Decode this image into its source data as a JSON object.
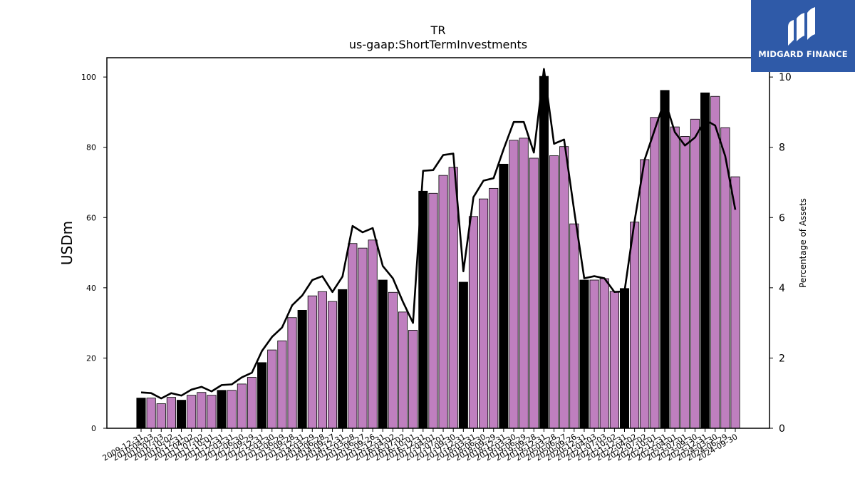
{
  "chart_data": {
    "type": "bar",
    "title": "TR",
    "subtitle": "us-gaap:ShortTermInvestments",
    "ylabel": "USDm",
    "y2label": "Percentage of Assets",
    "ylim": [
      0,
      105.5
    ],
    "y2lim": [
      0,
      10.55
    ],
    "yticks": [
      0,
      20,
      40,
      60,
      80,
      100
    ],
    "y2ticks": [
      0,
      2,
      4,
      6,
      8,
      10
    ],
    "colors": {
      "annual_bar": "#000000",
      "quarter_bar": "#bf7fbf",
      "line": "#000000"
    },
    "categories": [
      "2009-12-31",
      "2010-04-03",
      "2010-07-03",
      "2010-10-02",
      "2010-12-31",
      "2011-04-02",
      "2011-07-02",
      "2011-10-01",
      "2011-12-31",
      "2012-03-31",
      "2012-06-30",
      "2012-09-29",
      "2012-12-31",
      "2013-03-30",
      "2013-06-29",
      "2013-09-28",
      "2013-12-31",
      "2014-03-29",
      "2014-06-28",
      "2014-09-27",
      "2014-12-31",
      "2015-03-28",
      "2015-06-27",
      "2015-09-26",
      "2015-12-31",
      "2016-04-02",
      "2016-07-02",
      "2016-10-01",
      "2016-12-31",
      "2017-04-01",
      "2017-07-01",
      "2017-09-30",
      "2017-12-31",
      "2018-03-31",
      "2018-06-30",
      "2018-09-29",
      "2018-12-31",
      "2019-03-30",
      "2019-06-29",
      "2019-09-28",
      "2019-12-31",
      "2020-03-28",
      "2020-06-27",
      "2020-09-26",
      "2020-12-31",
      "2021-04-03",
      "2021-07-03",
      "2021-10-02",
      "2021-12-31",
      "2022-04-02",
      "2022-07-02",
      "2022-10-01",
      "2022-12-31",
      "2023-04-01",
      "2023-07-01",
      "2023-09-30",
      "2023-12-31",
      "2024-03-30",
      "2024-06-29",
      "2024-09-30"
    ],
    "tick_labels": [
      "2009-12-31",
      "2010-04-03",
      "2010-07-03",
      "2010-10-02",
      "2010-12-31",
      "2011-04-02",
      "2011-07-02",
      "2011-10-01",
      "2011-12-31",
      "2012-03-31",
      "2012-06-30",
      "2012-09-29",
      "2012-12-31",
      "2013-03-30",
      "2013-06-29",
      "2013-09-28",
      "2013-12-31",
      "2014-03-29",
      "2014-06-28",
      "2014-09-27",
      "2014-12-31",
      "2015-03-28",
      "2015-06-27",
      "2015-09-26",
      "2015-12-31",
      "2016-04-02",
      "2016-07-02",
      "2016-10-01",
      "2016-12-31",
      "2017-04-01",
      "2017-07-01",
      "2017-09-30",
      "2017-12-31",
      "2018-03-31",
      "2018-06-30",
      "2018-09-29",
      "2018-12-31",
      "2019-03-30",
      "2019-06-29",
      "2019-09-28",
      "2019-12-31",
      "2020-03-28",
      "2020-06-27",
      "2020-09-26",
      "2020-12-31",
      "2021-04-03",
      "2021-07-03",
      "2021-10-02",
      "2021-12-31",
      "2022-04-02",
      "2022-07-02",
      "2022-10-01",
      "2022-12-31",
      "2023-04-01",
      "2023-07-01",
      "2023-09-30",
      "2023-12-31",
      "2024-03-30",
      "2024-06-29",
      "2024-09-30"
    ],
    "annual_flags": [
      1,
      0,
      0,
      0,
      1,
      0,
      0,
      0,
      1,
      0,
      0,
      0,
      1,
      0,
      0,
      0,
      1,
      0,
      0,
      0,
      1,
      0,
      0,
      0,
      1,
      0,
      0,
      0,
      1,
      0,
      0,
      0,
      1,
      0,
      0,
      0,
      1,
      0,
      0,
      0,
      1,
      0,
      0,
      0,
      1,
      0,
      0,
      0,
      1,
      0,
      0,
      0,
      1,
      0,
      0,
      0,
      1,
      0,
      0,
      0
    ],
    "series": [
      {
        "type": "bar",
        "axis": "left",
        "values": [
          8.6,
          8.6,
          7.0,
          8.8,
          8.0,
          9.4,
          10.2,
          9.4,
          10.8,
          10.8,
          12.6,
          14.5,
          18.7,
          22.3,
          24.9,
          31.5,
          33.6,
          37.7,
          38.9,
          36.1,
          39.5,
          52.6,
          51.3,
          53.6,
          42.2,
          38.7,
          33.1,
          27.9,
          67.5,
          66.9,
          72.0,
          74.3,
          41.6,
          60.3,
          65.3,
          68.3,
          75.2,
          82.0,
          82.6,
          76.9,
          100.2,
          77.6,
          80.2,
          58.2,
          42.2,
          42.2,
          42.6,
          39.0,
          39.8,
          58.7,
          76.5,
          88.5,
          96.2,
          85.8,
          83.1,
          88.0,
          95.5,
          94.5,
          85.6,
          71.6
        ]
      },
      {
        "type": "line",
        "axis": "right",
        "values": [
          1.02,
          1.0,
          0.85,
          1.0,
          0.93,
          1.1,
          1.18,
          1.05,
          1.23,
          1.25,
          1.45,
          1.58,
          2.2,
          2.6,
          2.87,
          3.5,
          3.78,
          4.22,
          4.33,
          3.88,
          4.32,
          5.76,
          5.58,
          5.7,
          4.62,
          4.27,
          3.6,
          3.0,
          7.33,
          7.35,
          7.78,
          7.82,
          4.47,
          6.58,
          7.05,
          7.12,
          7.95,
          8.72,
          8.72,
          7.85,
          10.23,
          8.1,
          8.22,
          6.2,
          4.27,
          4.33,
          4.27,
          3.88,
          3.9,
          5.9,
          7.65,
          8.5,
          9.35,
          8.43,
          8.05,
          8.28,
          8.78,
          8.62,
          7.75,
          6.22
        ]
      }
    ]
  },
  "logo": {
    "text": "MIDGARD FINANCE",
    "icon": "midgard-logo-icon",
    "bg": "#2f5aa8"
  }
}
